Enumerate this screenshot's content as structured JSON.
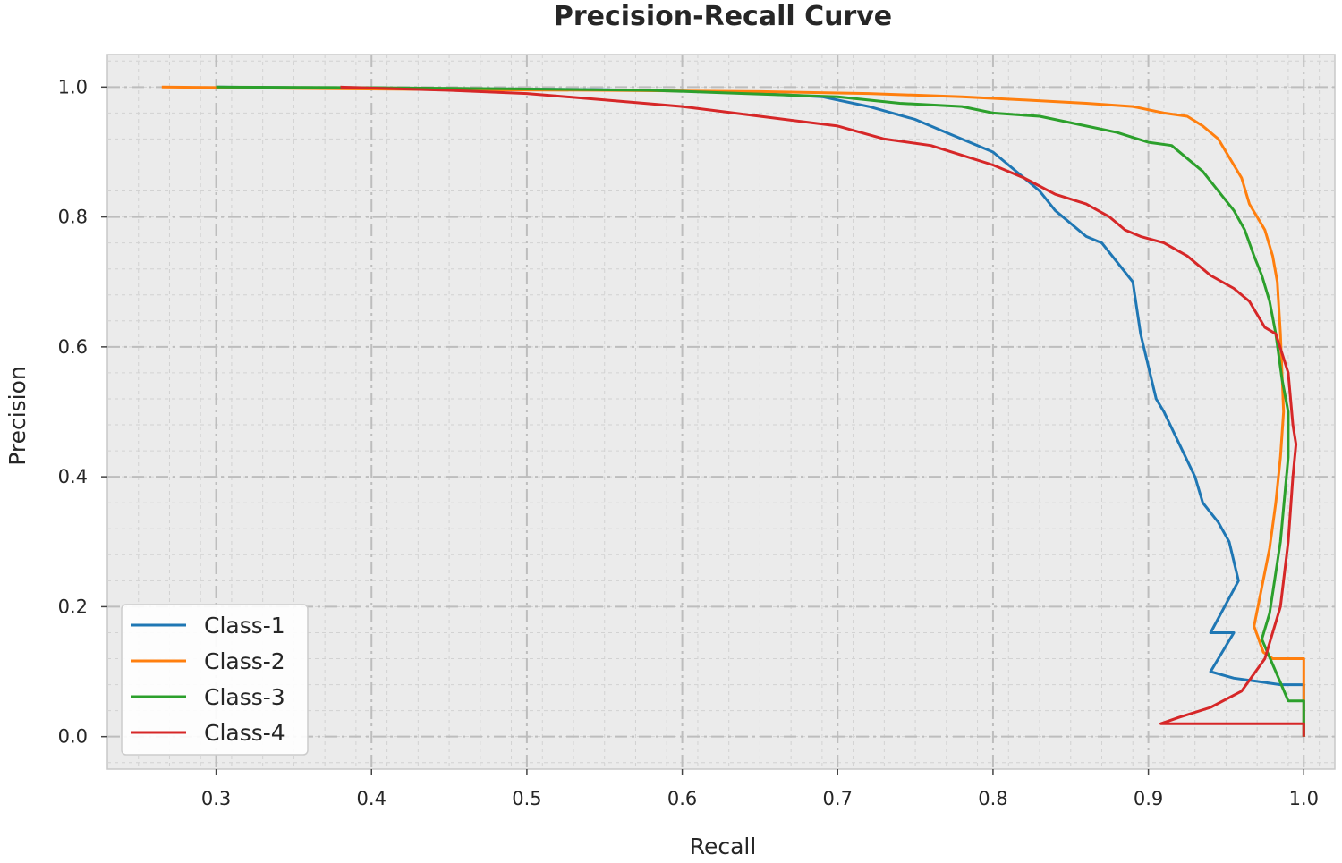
{
  "chart_data": {
    "type": "line",
    "title": "Precision-Recall Curve",
    "xlabel": "Recall",
    "ylabel": "Precision",
    "xlim": [
      0.23,
      1.02
    ],
    "ylim": [
      -0.05,
      1.05
    ],
    "xticks": [
      0.3,
      0.4,
      0.5,
      0.6,
      0.7,
      0.8,
      0.9,
      1.0
    ],
    "xtick_labels": [
      "0.3",
      "0.4",
      "0.5",
      "0.6",
      "0.7",
      "0.8",
      "0.9",
      "1.0"
    ],
    "yticks": [
      0.0,
      0.2,
      0.4,
      0.6,
      0.8,
      1.0
    ],
    "ytick_labels": [
      "0.0",
      "0.2",
      "0.4",
      "0.6",
      "0.8",
      "1.0"
    ],
    "grid": true,
    "legend_position": "lower-left",
    "series": [
      {
        "name": "Class-1",
        "color": "#1f77b4",
        "x": [
          0.3,
          0.4,
          0.5,
          0.55,
          0.6,
          0.65,
          0.69,
          0.72,
          0.75,
          0.77,
          0.79,
          0.8,
          0.81,
          0.82,
          0.83,
          0.84,
          0.85,
          0.86,
          0.87,
          0.88,
          0.89,
          0.895,
          0.9,
          0.905,
          0.91,
          0.92,
          0.93,
          0.935,
          0.945,
          0.952,
          0.958,
          0.94,
          0.955,
          0.94,
          0.955,
          0.97,
          0.985,
          1.0,
          1.0
        ],
        "y": [
          1.0,
          0.998,
          0.997,
          0.996,
          0.994,
          0.99,
          0.985,
          0.97,
          0.95,
          0.93,
          0.91,
          0.9,
          0.88,
          0.86,
          0.84,
          0.81,
          0.79,
          0.77,
          0.76,
          0.73,
          0.7,
          0.62,
          0.57,
          0.52,
          0.5,
          0.45,
          0.4,
          0.36,
          0.33,
          0.3,
          0.24,
          0.16,
          0.16,
          0.1,
          0.09,
          0.085,
          0.08,
          0.08,
          0.0
        ]
      },
      {
        "name": "Class-2",
        "color": "#ff7f0e",
        "x": [
          0.265,
          0.35,
          0.45,
          0.55,
          0.65,
          0.72,
          0.78,
          0.82,
          0.86,
          0.89,
          0.91,
          0.925,
          0.935,
          0.945,
          0.955,
          0.96,
          0.965,
          0.97,
          0.975,
          0.98,
          0.983,
          0.985,
          0.987,
          0.985,
          0.982,
          0.978,
          0.973,
          0.968,
          0.974,
          0.98,
          1.0,
          1.0
        ],
        "y": [
          1.0,
          0.998,
          0.996,
          0.995,
          0.993,
          0.99,
          0.985,
          0.98,
          0.975,
          0.97,
          0.96,
          0.955,
          0.94,
          0.92,
          0.88,
          0.86,
          0.82,
          0.8,
          0.78,
          0.74,
          0.7,
          0.62,
          0.5,
          0.43,
          0.36,
          0.29,
          0.23,
          0.17,
          0.13,
          0.12,
          0.12,
          0.0
        ]
      },
      {
        "name": "Class-3",
        "color": "#2ca02c",
        "x": [
          0.3,
          0.4,
          0.5,
          0.58,
          0.64,
          0.7,
          0.74,
          0.78,
          0.8,
          0.83,
          0.86,
          0.88,
          0.9,
          0.915,
          0.925,
          0.935,
          0.945,
          0.955,
          0.962,
          0.968,
          0.973,
          0.978,
          0.982,
          0.986,
          0.99,
          0.99,
          0.985,
          0.978,
          0.973,
          0.982,
          0.99,
          1.0,
          1.0
        ],
        "y": [
          1.0,
          0.999,
          0.997,
          0.995,
          0.99,
          0.985,
          0.975,
          0.97,
          0.96,
          0.955,
          0.94,
          0.93,
          0.915,
          0.91,
          0.89,
          0.87,
          0.84,
          0.81,
          0.78,
          0.74,
          0.71,
          0.67,
          0.62,
          0.55,
          0.5,
          0.43,
          0.3,
          0.19,
          0.15,
          0.1,
          0.055,
          0.055,
          0.0
        ]
      },
      {
        "name": "Class-4",
        "color": "#d62728",
        "x": [
          0.38,
          0.45,
          0.5,
          0.55,
          0.6,
          0.65,
          0.7,
          0.73,
          0.76,
          0.78,
          0.8,
          0.82,
          0.84,
          0.86,
          0.875,
          0.885,
          0.895,
          0.91,
          0.925,
          0.94,
          0.955,
          0.965,
          0.975,
          0.982,
          0.986,
          0.99,
          0.993,
          0.995,
          0.993,
          0.99,
          0.985,
          0.975,
          0.96,
          0.94,
          0.92,
          0.908,
          1.0,
          1.0
        ],
        "y": [
          1.0,
          0.995,
          0.99,
          0.98,
          0.97,
          0.955,
          0.94,
          0.92,
          0.91,
          0.895,
          0.88,
          0.86,
          0.835,
          0.82,
          0.8,
          0.78,
          0.77,
          0.76,
          0.74,
          0.71,
          0.69,
          0.67,
          0.63,
          0.62,
          0.59,
          0.56,
          0.48,
          0.45,
          0.4,
          0.3,
          0.2,
          0.12,
          0.07,
          0.045,
          0.03,
          0.02,
          0.02,
          0.0
        ]
      }
    ]
  }
}
